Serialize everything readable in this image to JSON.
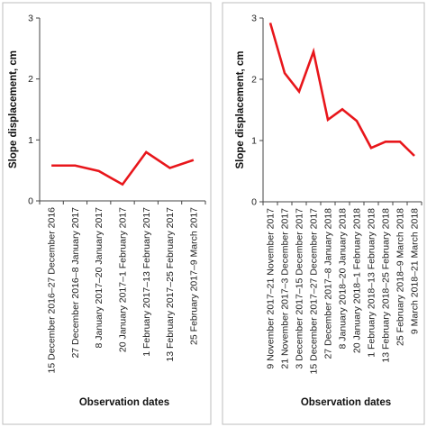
{
  "chart_data": [
    {
      "type": "line",
      "x": [
        "15 December 2016–27 December 2016",
        "27 December 2016–8 January 2017",
        "8 January 2017–20 January 2017",
        "20 January 2017–1 February 2017",
        "1 February 2017–13 February 2017",
        "13 February 2017–25 February 2017",
        "25 February 2017–9 March 2017"
      ],
      "series": [
        {
          "values": [
            0.58,
            0.58,
            0.49,
            0.27,
            0.8,
            0.54,
            0.67
          ],
          "color": "#e8161b"
        }
      ],
      "xlabel": "Observation dates",
      "ylabel": "Slope displacement, cm",
      "ylim": [
        0,
        3
      ],
      "yticks": [
        "0",
        "1",
        "2",
        "3"
      ],
      "grid": false
    },
    {
      "type": "line",
      "x": [
        "9 November 2017–21 November 2017",
        "21 November 2017–3 December 2017",
        "3 December 2017–15 December 2017",
        "15 December 2017–27 December 2017",
        "27 December 2017–8 January 2018",
        "8 January 2018–20 January 2018",
        "20 January 2018–1 February 2018",
        "1 February 2018–13 February 2018",
        "13 February 2018–25 February 2018",
        "25 February 2018–9 March 2018",
        "9 March 2018–21 March 2018"
      ],
      "series": [
        {
          "values": [
            2.92,
            2.1,
            1.8,
            2.45,
            1.34,
            1.51,
            1.32,
            0.88,
            0.98,
            0.98,
            0.75
          ],
          "color": "#e8161b"
        }
      ],
      "xlabel": "Observation dates",
      "ylabel": "Slope displacement, cm",
      "ylim": [
        0,
        3
      ],
      "yticks": [
        "0",
        "1",
        "2",
        "3"
      ],
      "grid": false
    }
  ]
}
